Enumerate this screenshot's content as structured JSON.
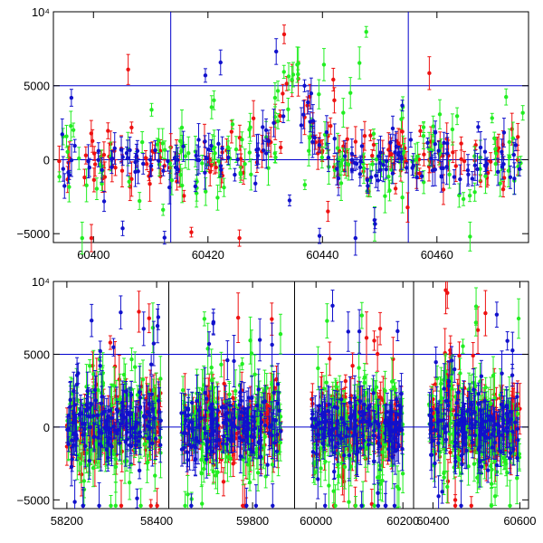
{
  "colors": {
    "red": "#ee1111",
    "green": "#22ee22",
    "blue": "#1111cc",
    "ref_line": "#0000cc",
    "axis": "#000000"
  },
  "chart_data": [
    {
      "type": "scatter",
      "title": "",
      "xlabel": "",
      "ylabel": "",
      "xlim": [
        60393,
        60476
      ],
      "ylim": [
        -5600,
        10000
      ],
      "x_ticks": [
        60400,
        60420,
        60440,
        60460
      ],
      "y_ticks": [
        -5000,
        0,
        5000,
        10000
      ],
      "y_tick_labels": [
        "−5000",
        "0",
        "5000",
        "10⁴"
      ],
      "hlines": [
        0,
        5000
      ],
      "vlines": [
        60413.5,
        60455
      ],
      "series": [
        {
          "color": "red",
          "error_bars": true
        },
        {
          "color": "green",
          "error_bars": true
        },
        {
          "color": "blue",
          "error_bars": true
        }
      ],
      "flare": {
        "peak_x": 60435,
        "peak_y": 5600,
        "start_x": 60428,
        "end_x": 60442
      }
    },
    {
      "type": "scatter",
      "title": "",
      "xlabel": "",
      "ylabel": "",
      "x_ticks": [
        "58200",
        "58400",
        "59800",
        "60000",
        "60200",
        "60400",
        "60600"
      ],
      "y_ticks": [
        -5000,
        0,
        5000,
        10000
      ],
      "y_tick_labels": [
        "−5000",
        "0",
        "5000",
        "10⁴"
      ],
      "ylim": [
        -5600,
        10000
      ],
      "hlines": [
        0,
        5000
      ],
      "broken_x_axis": true,
      "segments": [
        {
          "xlim": [
            58170,
            58420
          ],
          "data_range": [
            58200,
            58410
          ]
        },
        {
          "xlim": [
            59630,
            59880
          ],
          "data_range": [
            59650,
            59860
          ]
        },
        {
          "xlim": [
            59960,
            60210
          ],
          "data_range": [
            59990,
            60200
          ]
        },
        {
          "xlim": [
            60370,
            60620
          ],
          "data_range": [
            60390,
            60600
          ]
        }
      ],
      "series": [
        {
          "color": "red",
          "error_bars": true
        },
        {
          "color": "green",
          "error_bars": true
        },
        {
          "color": "blue",
          "error_bars": true
        }
      ]
    }
  ]
}
